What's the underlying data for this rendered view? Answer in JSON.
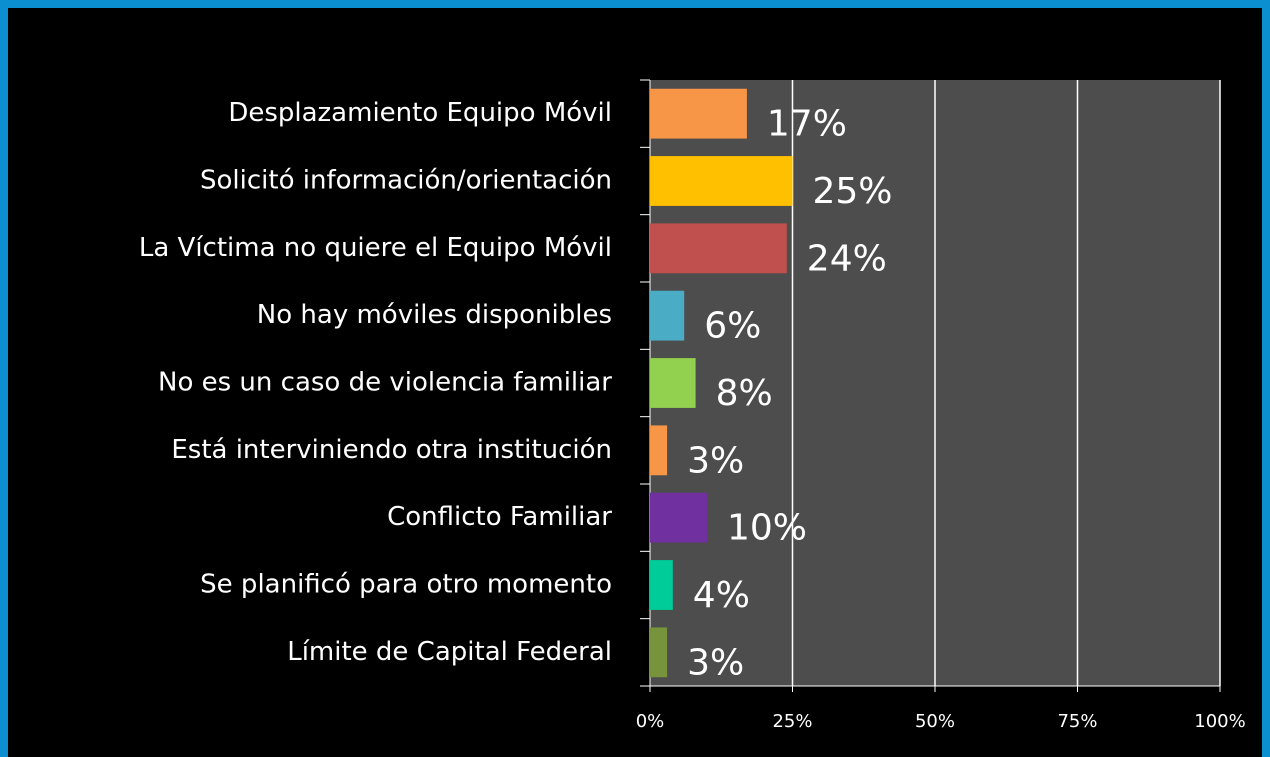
{
  "chart_data": {
    "type": "hbar",
    "categories": [
      "Desplazamiento Equipo Móvil",
      "Solicitó información/orientación",
      "La Víctima no quiere el Equipo Móvil",
      "No hay móviles disponibles",
      "No es un caso de violencia familiar",
      "Está interviniendo otra institución",
      "Conflicto Familiar",
      "Se planificó para otro momento",
      "Límite de Capital Federal"
    ],
    "values": [
      17,
      25,
      24,
      6,
      8,
      3,
      10,
      4,
      3
    ],
    "value_labels": [
      "17%",
      "25%",
      "24%",
      "6%",
      "8%",
      "3%",
      "10%",
      "4%",
      "3%"
    ],
    "colors": [
      "#f79646",
      "#ffc000",
      "#c0504d",
      "#4bacc6",
      "#92d050",
      "#f79646",
      "#7030a0",
      "#00cc99",
      "#77933c"
    ],
    "xlim": [
      0,
      100
    ],
    "xticks": [
      {
        "value": 0,
        "label": "0%"
      },
      {
        "value": 25,
        "label": "25%"
      },
      {
        "value": 50,
        "label": "50%"
      },
      {
        "value": 75,
        "label": "75%"
      },
      {
        "value": 100,
        "label": "100%"
      }
    ],
    "grid": true
  }
}
